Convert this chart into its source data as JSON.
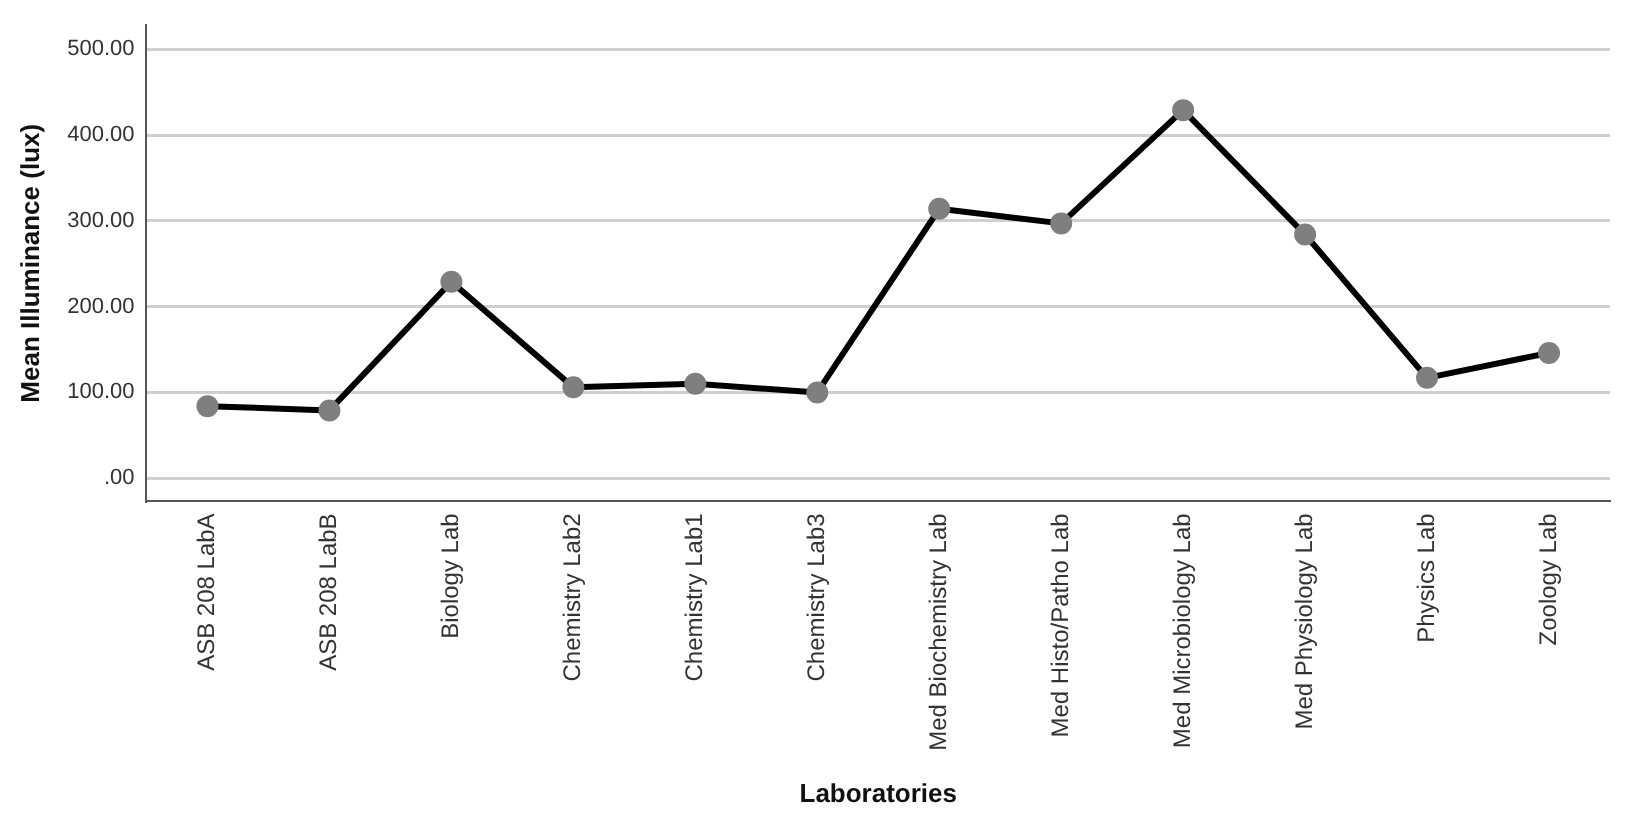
{
  "chart_data": {
    "type": "line",
    "xlabel": "Laboratories",
    "ylabel": "Mean Illuminance (lux)",
    "categories": [
      "ASB 208 LabA",
      "ASB 208 LabB",
      "Biology Lab",
      "Chemistry Lab2",
      "Chemistry Lab1",
      "Chemistry Lab3",
      "Med Biochemistry Lab",
      "Med Histo/Patho Lab",
      "Med Microbiology Lab",
      "Med Physiology Lab",
      "Physics Lab",
      "Zoology Lab"
    ],
    "series": [
      {
        "color": "#000000",
        "values": [
          84,
          79,
          229,
          106,
          110,
          100,
          314,
          297,
          429,
          284,
          117,
          146
        ]
      }
    ],
    "ylim": [
      -27,
      528
    ],
    "yticks": [
      {
        "value": 0,
        "label": ".00"
      },
      {
        "value": 100,
        "label": "100.00"
      },
      {
        "value": 200,
        "label": "200.00"
      },
      {
        "value": 300,
        "label": "300.00"
      },
      {
        "value": 400,
        "label": "400.00"
      },
      {
        "value": 500,
        "label": "500.00"
      }
    ],
    "grid": "y",
    "legend": false,
    "marker": "circle",
    "line_style": "solid"
  }
}
